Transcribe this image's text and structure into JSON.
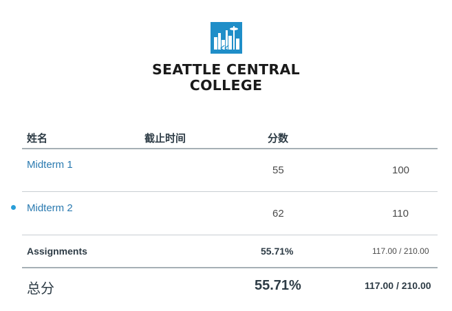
{
  "logo": {
    "line1": "SEATTLE CENTRAL",
    "line2": "COLLEGE",
    "colors": {
      "mark_blue": "#1f8ec8",
      "text": "#1a1a1a"
    }
  },
  "table": {
    "headers": {
      "name": "姓名",
      "due": "截止时间",
      "score": "分数"
    },
    "rows": [
      {
        "name": "Midterm 1",
        "score": "55",
        "out_of": "100",
        "unread": false
      },
      {
        "name": "Midterm 2",
        "score": "62",
        "out_of": "110",
        "unread": true
      }
    ],
    "group": {
      "name": "Assignments",
      "percent": "55.71%",
      "points": "117.00 / 210.00"
    },
    "total": {
      "label": "总分",
      "percent": "55.71%",
      "points": "117.00 / 210.00"
    }
  }
}
